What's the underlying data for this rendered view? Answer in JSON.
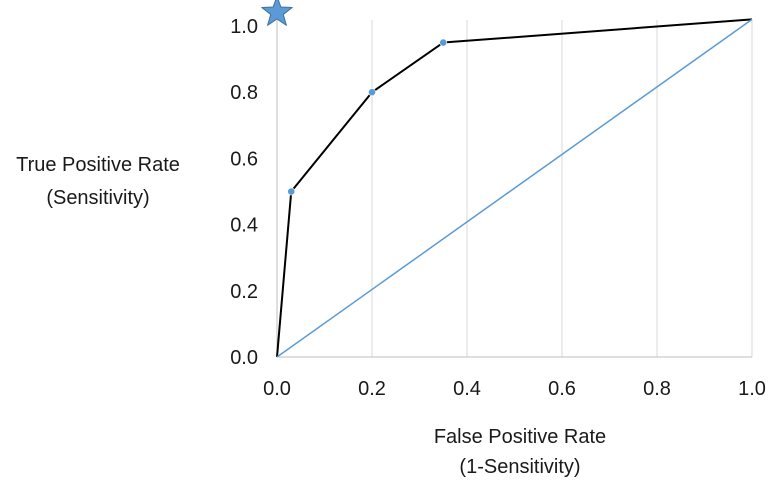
{
  "chart_data": {
    "type": "line",
    "title": "",
    "xlabel": [
      "False Positive Rate",
      "(1-Sensitivity)"
    ],
    "ylabel": [
      "True Positive Rate",
      "(Sensitivity)"
    ],
    "xlim": [
      0,
      1
    ],
    "ylim": [
      0,
      1
    ],
    "x_ticks": [
      0.0,
      0.2,
      0.4,
      0.6,
      0.8,
      1.0
    ],
    "y_ticks": [
      0.0,
      0.2,
      0.4,
      0.6,
      0.8,
      1.0
    ],
    "x_tick_labels": [
      "0.0",
      "0.2",
      "0.4",
      "0.6",
      "0.8",
      "1.0"
    ],
    "y_tick_labels": [
      "0.0",
      "0.2",
      "0.4",
      "0.6",
      "0.8",
      "1.0"
    ],
    "grid": "vertical",
    "series": [
      {
        "points": [
          {
            "x": 0.0,
            "y": 0.0,
            "marker": "none"
          },
          {
            "x": 0.03,
            "y": 0.5,
            "marker": "dot"
          },
          {
            "x": 0.2,
            "y": 0.8,
            "marker": "dot"
          },
          {
            "x": 0.35,
            "y": 0.95,
            "marker": "dot"
          },
          {
            "x": 1.0,
            "y": 1.02,
            "marker": "none"
          }
        ],
        "color": "#000000"
      },
      {
        "points": [
          {
            "x": 0.0,
            "y": 0.0
          },
          {
            "x": 1.0,
            "y": 1.02
          }
        ],
        "color": "#5b9bd5"
      }
    ],
    "annotations": [
      {
        "type": "star",
        "x": 0.0,
        "y": 1.02,
        "color": "#5b9bd5"
      }
    ],
    "colors": {
      "roc_line": "#000000",
      "marker": "#5b9bd5",
      "reference_line": "#5b9bd5",
      "grid": "#d9d9d9",
      "star": "#5b9bd5",
      "text": "#1a1a1a"
    }
  }
}
